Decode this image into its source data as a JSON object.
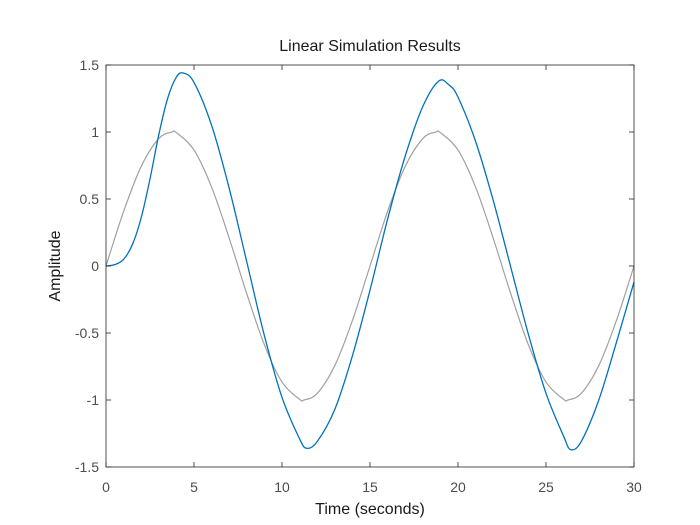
{
  "chart_data": {
    "type": "line",
    "title": "Linear Simulation Results",
    "xlabel": "Time (seconds)",
    "ylabel": "Amplitude",
    "xlim": [
      0,
      30
    ],
    "ylim": [
      -1.5,
      1.5
    ],
    "xticks": [
      0,
      5,
      10,
      15,
      20,
      25,
      30
    ],
    "xtick_labels": [
      "0",
      "5",
      "10",
      "15",
      "20",
      "25",
      "30"
    ],
    "yticks": [
      1.5,
      1,
      0.5,
      0,
      -0.5,
      -1,
      -1.5
    ],
    "ytick_labels": [
      "1.5",
      "1",
      "0.5",
      "0",
      "-0.5",
      "-1",
      "-1.5"
    ],
    "grid": false,
    "series": [
      {
        "color": "#a0a0a0",
        "x": [
          0,
          1,
          2,
          3,
          3.75,
          4,
          5,
          6,
          7,
          8,
          9,
          10,
          11,
          11.25,
          12,
          13,
          14,
          15,
          16,
          17,
          18,
          18.75,
          19,
          20,
          21,
          22,
          23,
          24,
          25,
          26,
          26.25,
          27,
          28,
          29,
          30
        ],
        "y": [
          0,
          0.407,
          0.743,
          0.951,
          1.0,
          0.995,
          0.866,
          0.588,
          0.208,
          -0.208,
          -0.588,
          -0.866,
          -0.995,
          -1.0,
          -0.951,
          -0.743,
          -0.407,
          0,
          0.407,
          0.743,
          0.951,
          1.0,
          0.995,
          0.866,
          0.588,
          0.208,
          -0.208,
          -0.588,
          -0.866,
          -0.995,
          -1.0,
          -0.951,
          -0.743,
          -0.407,
          0
        ]
      },
      {
        "color": "#0072bd",
        "x": [
          0,
          0.5,
          1,
          1.5,
          2,
          2.5,
          3,
          3.5,
          4,
          4.4,
          5,
          6,
          7,
          8,
          9,
          10,
          11,
          11.4,
          12,
          13,
          14,
          15,
          16,
          17,
          18,
          18.9,
          19.5,
          20,
          21,
          22,
          23,
          24,
          25,
          26,
          26.4,
          27,
          28,
          29,
          30
        ],
        "y": [
          0,
          0.01,
          0.05,
          0.16,
          0.36,
          0.65,
          0.98,
          1.25,
          1.41,
          1.44,
          1.37,
          1.05,
          0.58,
          0.03,
          -0.52,
          -0.98,
          -1.29,
          -1.36,
          -1.31,
          -1.07,
          -0.67,
          -0.18,
          0.35,
          0.82,
          1.19,
          1.38,
          1.35,
          1.26,
          0.93,
          0.49,
          -0.01,
          -0.51,
          -0.95,
          -1.27,
          -1.37,
          -1.31,
          -1.0,
          -0.57,
          -0.12
        ]
      }
    ]
  }
}
